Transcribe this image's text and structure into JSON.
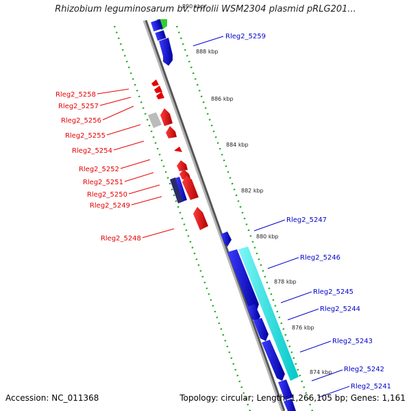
{
  "title": "Rhizobium leguminosarum bv. trifolii WSM2304 plasmid pRLG201...",
  "footer": {
    "accession": "Accession: NC_011368",
    "summary": "Topology: circular; Length: 1,266,105 bp; Genes: 1,161"
  },
  "colors": {
    "reverse_gene": "#e60000",
    "forward_gene": "#0000e6",
    "highlight": "#00e5e5",
    "pseudo": "#bbbbbb",
    "other": "#33cc33",
    "ticks": "#22aa22",
    "backbone": "#888888"
  },
  "ticks": [
    {
      "label": "890 kbp"
    },
    {
      "label": "888 kbp"
    },
    {
      "label": "886 kbp"
    },
    {
      "label": "884 kbp"
    },
    {
      "label": "882 kbp"
    },
    {
      "label": "880 kbp"
    },
    {
      "label": "878 kbp"
    },
    {
      "label": "876 kbp"
    },
    {
      "label": "874 kbp"
    }
  ],
  "reverse_genes": [
    {
      "label": "Rleg2_5258"
    },
    {
      "label": "Rleg2_5257"
    },
    {
      "label": "Rleg2_5256"
    },
    {
      "label": "Rleg2_5255"
    },
    {
      "label": "Rleg2_5254"
    },
    {
      "label": "Rleg2_5252"
    },
    {
      "label": "Rleg2_5251"
    },
    {
      "label": "Rleg2_5250"
    },
    {
      "label": "Rleg2_5249"
    },
    {
      "label": "Rleg2_5248"
    }
  ],
  "forward_genes": [
    {
      "label": "Rleg2_5259"
    },
    {
      "label": "Rleg2_5247"
    },
    {
      "label": "Rleg2_5246"
    },
    {
      "label": "Rleg2_5245"
    },
    {
      "label": "Rleg2_5244"
    },
    {
      "label": "Rleg2_5243"
    },
    {
      "label": "Rleg2_5242"
    },
    {
      "label": "Rleg2_5241"
    }
  ]
}
